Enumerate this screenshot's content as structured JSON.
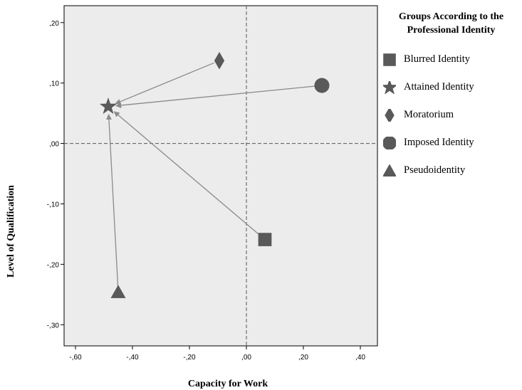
{
  "chart_data": {
    "type": "scatter",
    "xlabel": "Capacity for Work",
    "ylabel": "Level of Qualification",
    "xlim": [
      -0.64,
      0.46
    ],
    "ylim": [
      -0.335,
      0.228
    ],
    "xticks": [
      {
        "value": -0.6,
        "label": "-,60"
      },
      {
        "value": -0.4,
        "label": "-,40"
      },
      {
        "value": -0.2,
        "label": "-,20"
      },
      {
        "value": 0.0,
        "label": ",00"
      },
      {
        "value": 0.2,
        "label": ",20"
      },
      {
        "value": 0.4,
        "label": ",40"
      }
    ],
    "yticks": [
      {
        "value": 0.2,
        "label": ",20"
      },
      {
        "value": 0.1,
        "label": ",10"
      },
      {
        "value": 0.0,
        "label": ",00"
      },
      {
        "value": -0.1,
        "label": "-,10"
      },
      {
        "value": -0.2,
        "label": "-,20"
      },
      {
        "value": -0.3,
        "label": "-,30"
      }
    ],
    "reference_lines": {
      "x": 0,
      "y": 0,
      "style": "dashed"
    },
    "legend_title": "Groups According to the Professional Identity",
    "legend_position": "right",
    "series": [
      {
        "name": "Blurred Identity",
        "marker": "square",
        "x": 0.065,
        "y": -0.159
      },
      {
        "name": "Attained Identity",
        "marker": "star",
        "x": -0.485,
        "y": 0.061
      },
      {
        "name": "Moratorium",
        "marker": "diamond",
        "x": -0.095,
        "y": 0.137
      },
      {
        "name": "Imposed Identity",
        "marker": "circle",
        "x": 0.265,
        "y": 0.096
      },
      {
        "name": "Pseudoidentity",
        "marker": "triangle",
        "x": -0.45,
        "y": -0.246
      }
    ],
    "arrows_to": "Attained Identity",
    "colors": {
      "marker": "#595959",
      "plot_background": "#ececec",
      "arrow": "#8a8a8a"
    }
  }
}
